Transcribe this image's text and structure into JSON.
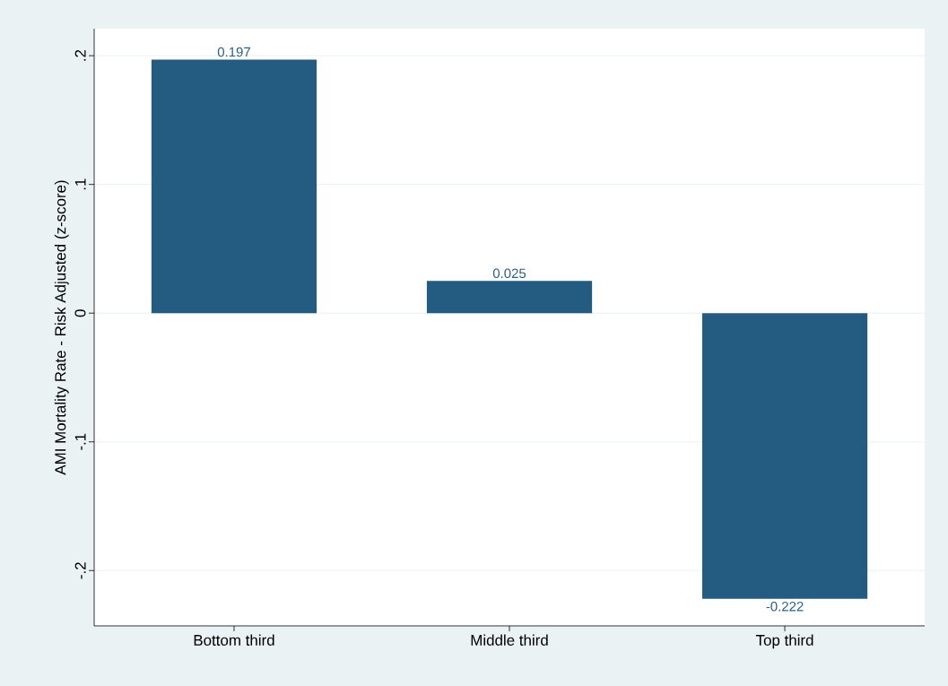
{
  "chart_data": {
    "type": "bar",
    "ylabel": "AMI Mortality Rate - Risk Adjusted (z-score)",
    "categories": [
      "Bottom third",
      "Middle third",
      "Top third"
    ],
    "values": [
      0.197,
      0.025,
      -0.222
    ],
    "color": "#245b80",
    "data_labels": true,
    "ylim": [
      -0.243,
      0.221
    ],
    "yticks": [
      {
        "value": -0.2,
        "label": "-.2"
      },
      {
        "value": -0.1,
        "label": "-.1"
      },
      {
        "value": 0,
        "label": "0"
      },
      {
        "value": 0.1,
        "label": ".1"
      },
      {
        "value": 0.2,
        "label": ".2"
      }
    ],
    "grid": "y"
  }
}
